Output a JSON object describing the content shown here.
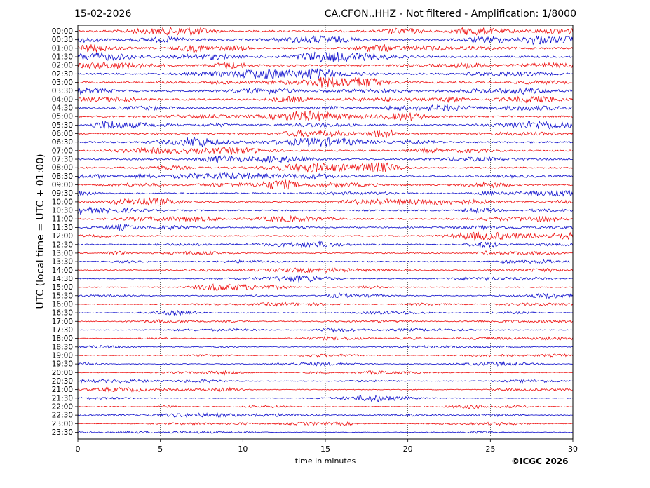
{
  "header": {
    "date": "15-02-2026",
    "title": "CA.CFON..HHZ - Not filtered - Amplification: 1/8000"
  },
  "credit": "©ICGC 2026",
  "colors": {
    "even_row": "#ee1111",
    "odd_row": "#1111cc",
    "axis": "#000000",
    "grid": "#000000"
  },
  "chart_data": {
    "type": "line",
    "title": "CA.CFON..HHZ - Not filtered - Amplification: 1/8000",
    "xlabel": "time in minutes",
    "ylabel": "UTC (local time = UTC + 01:00)",
    "xlim": [
      0,
      30
    ],
    "x_ticks": [
      0,
      5,
      10,
      15,
      20,
      25,
      30
    ],
    "grid": "vertical dotted lines at x ticks",
    "rows": [
      "00:00",
      "00:30",
      "01:00",
      "01:30",
      "02:00",
      "02:30",
      "03:00",
      "03:30",
      "04:00",
      "04:30",
      "05:00",
      "05:30",
      "06:00",
      "06:30",
      "07:00",
      "07:30",
      "08:00",
      "08:30",
      "09:00",
      "09:30",
      "10:00",
      "10:30",
      "11:00",
      "11:30",
      "12:00",
      "12:30",
      "13:00",
      "13:30",
      "14:00",
      "14:30",
      "15:00",
      "15:30",
      "16:00",
      "16:30",
      "17:00",
      "17:30",
      "18:00",
      "18:30",
      "19:00",
      "19:30",
      "20:00",
      "20:30",
      "21:00",
      "21:30",
      "22:00",
      "22:30",
      "23:00",
      "23:30"
    ],
    "row_colors": "alternating red (even) and blue (odd)",
    "relative_amplitude": [
      1.0,
      1.0,
      1.0,
      1.0,
      1.0,
      0.95,
      0.95,
      0.95,
      0.95,
      0.9,
      0.9,
      0.9,
      0.9,
      0.9,
      0.85,
      0.85,
      0.85,
      0.8,
      0.8,
      0.8,
      0.75,
      0.75,
      0.75,
      0.7,
      0.7,
      0.7,
      0.6,
      0.55,
      0.55,
      0.5,
      0.5,
      0.5,
      0.45,
      0.45,
      0.45,
      0.4,
      0.4,
      0.4,
      0.4,
      0.4,
      0.4,
      0.4,
      0.4,
      0.4,
      0.4,
      0.4,
      0.4,
      0.4
    ]
  }
}
